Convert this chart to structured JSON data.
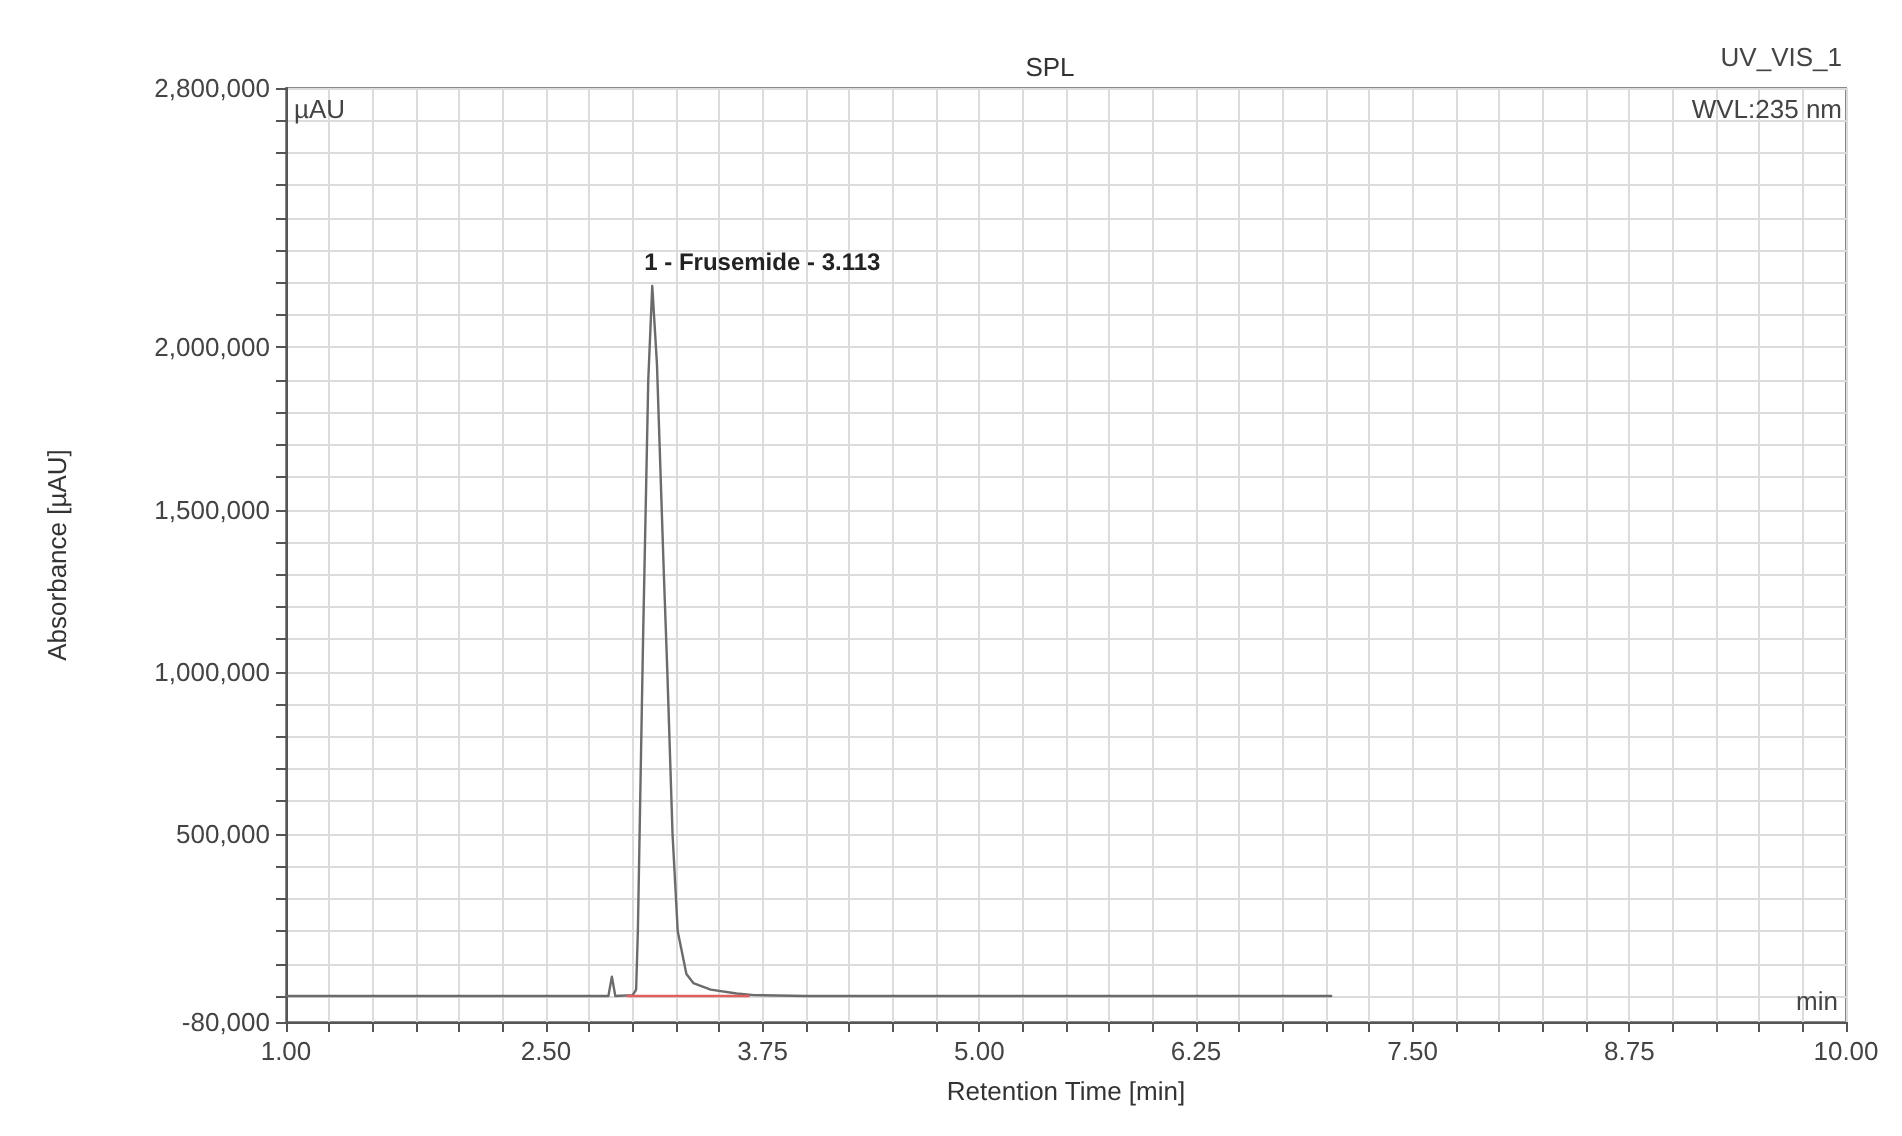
{
  "chart_data": {
    "type": "line",
    "title": "SPL",
    "xlabel": "Retention Time [min]",
    "ylabel": "Absorbance [µAU]",
    "annotations": [
      "µAU",
      "UV_VIS_1",
      "WVL:235 nm",
      "min",
      {
        "text": "1 - Frusemide - 3.113",
        "x": 3.113,
        "y": 2190000
      }
    ],
    "series": [
      {
        "color": "#6b6b6b",
        "x": [
          1.0,
          2.5,
          2.86,
          2.88,
          2.9,
          3.0,
          3.02,
          3.03,
          3.06,
          3.09,
          3.113,
          3.14,
          3.18,
          3.2,
          3.23,
          3.26,
          3.31,
          3.35,
          3.45,
          3.6,
          3.7,
          4.0,
          7.03
        ],
        "values": [
          0,
          0,
          0,
          60000,
          0,
          3000,
          20000,
          200000,
          1100000,
          1900000,
          2190000,
          1950000,
          1300000,
          1000000,
          500000,
          200000,
          68000,
          40000,
          20000,
          8000,
          3000,
          0,
          0
        ]
      },
      {
        "color": "#e06060",
        "x": [
          2.97,
          3.67
        ],
        "values": [
          0,
          0
        ]
      }
    ],
    "xlim": [
      1,
      10
    ],
    "xticks": [
      {
        "value": 1,
        "label": "1.00"
      },
      {
        "value": 1.25,
        "label": null
      },
      {
        "value": 1.5,
        "label": null
      },
      {
        "value": 1.75,
        "label": null
      },
      {
        "value": 2,
        "label": null
      },
      {
        "value": 2.25,
        "label": null
      },
      {
        "value": 2.5,
        "label": "2.50"
      },
      {
        "value": 2.75,
        "label": null
      },
      {
        "value": 3,
        "label": null
      },
      {
        "value": 3.25,
        "label": null
      },
      {
        "value": 3.5,
        "label": null
      },
      {
        "value": 3.75,
        "label": "3.75"
      },
      {
        "value": 4,
        "label": null
      },
      {
        "value": 4.25,
        "label": null
      },
      {
        "value": 4.5,
        "label": null
      },
      {
        "value": 4.75,
        "label": null
      },
      {
        "value": 5,
        "label": "5.00"
      },
      {
        "value": 5.25,
        "label": null
      },
      {
        "value": 5.5,
        "label": null
      },
      {
        "value": 5.75,
        "label": null
      },
      {
        "value": 6,
        "label": null
      },
      {
        "value": 6.25,
        "label": "6.25"
      },
      {
        "value": 6.5,
        "label": null
      },
      {
        "value": 6.75,
        "label": null
      },
      {
        "value": 7,
        "label": null
      },
      {
        "value": 7.25,
        "label": null
      },
      {
        "value": 7.5,
        "label": "7.50"
      },
      {
        "value": 7.75,
        "label": null
      },
      {
        "value": 8,
        "label": null
      },
      {
        "value": 8.25,
        "label": null
      },
      {
        "value": 8.5,
        "label": null
      },
      {
        "value": 8.75,
        "label": "8.75"
      },
      {
        "value": 9,
        "label": null
      },
      {
        "value": 9.25,
        "label": null
      },
      {
        "value": 9.5,
        "label": null
      },
      {
        "value": 9.75,
        "label": null
      },
      {
        "value": 10,
        "label": "10.00"
      }
    ],
    "ylim": [
      -80000,
      2800000
    ],
    "yticks": [
      {
        "value": -80000,
        "label": "-80,000"
      },
      {
        "value": 0,
        "label": null
      },
      {
        "value": 100000,
        "label": null
      },
      {
        "value": 200000,
        "label": null
      },
      {
        "value": 300000,
        "label": null
      },
      {
        "value": 400000,
        "label": null
      },
      {
        "value": 500000,
        "label": "500,000"
      },
      {
        "value": 600000,
        "label": null
      },
      {
        "value": 700000,
        "label": null
      },
      {
        "value": 800000,
        "label": null
      },
      {
        "value": 900000,
        "label": null
      },
      {
        "value": 1000000,
        "label": "1,000,000"
      },
      {
        "value": 1100000,
        "label": null
      },
      {
        "value": 1200000,
        "label": null
      },
      {
        "value": 1300000,
        "label": null
      },
      {
        "value": 1400000,
        "label": null
      },
      {
        "value": 1500000,
        "label": "1,500,000"
      },
      {
        "value": 1600000,
        "label": null
      },
      {
        "value": 1700000,
        "label": null
      },
      {
        "value": 1800000,
        "label": null
      },
      {
        "value": 1900000,
        "label": null
      },
      {
        "value": 2000000,
        "label": "2,000,000"
      },
      {
        "value": 2100000,
        "label": null
      },
      {
        "value": 2200000,
        "label": null
      },
      {
        "value": 2300000,
        "label": null
      },
      {
        "value": 2400000,
        "label": null
      },
      {
        "value": 2500000,
        "label": null
      },
      {
        "value": 2600000,
        "label": null
      },
      {
        "value": 2700000,
        "label": null
      },
      {
        "value": 2800000,
        "label": "2,800,000"
      }
    ],
    "grid": true,
    "marker": "none",
    "line_style": "solid"
  }
}
